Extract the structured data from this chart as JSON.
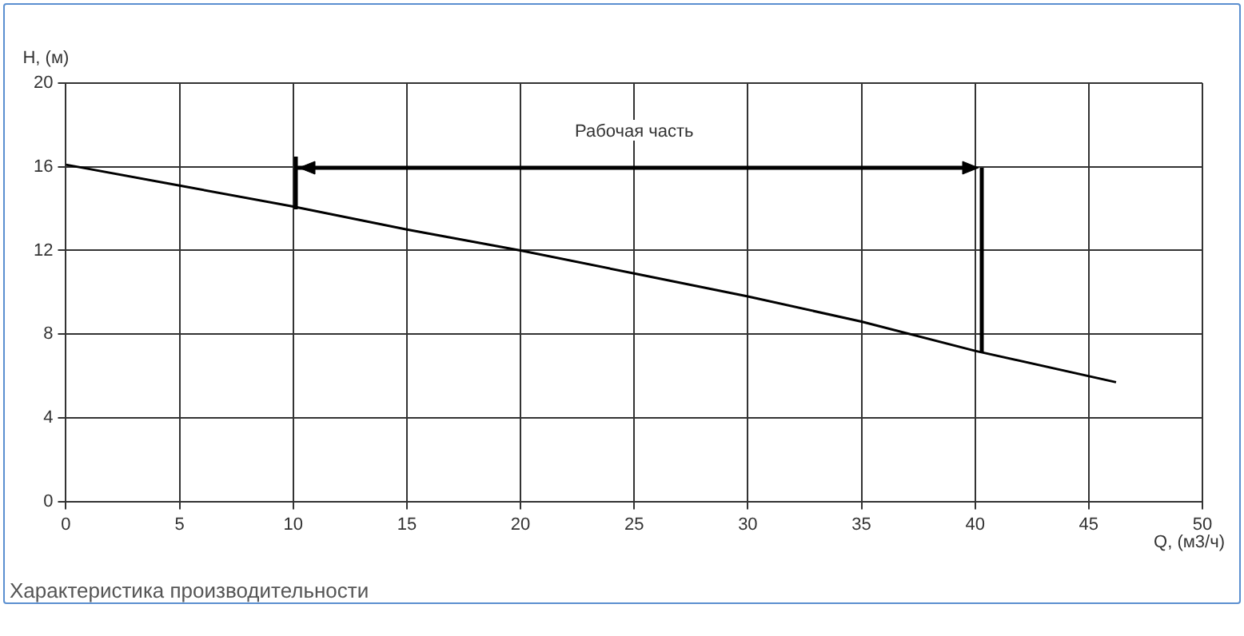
{
  "chart_data": {
    "type": "line",
    "xlabel": "Q, (м3/ч)",
    "ylabel": "H, (м)",
    "x": [
      0,
      5,
      10,
      15,
      20,
      25,
      30,
      35,
      40,
      46.2
    ],
    "series": [
      {
        "color": "#000000",
        "values": [
          16.1,
          15.1,
          14.1,
          13.0,
          12.0,
          10.9,
          9.8,
          8.6,
          7.2,
          5.7
        ]
      }
    ],
    "xlim": [
      0,
      50
    ],
    "xticks": [
      0,
      5,
      10,
      15,
      20,
      25,
      30,
      35,
      40,
      45,
      50
    ],
    "ylim": [
      0,
      20
    ],
    "yticks": [
      0,
      4,
      8,
      12,
      16,
      20
    ],
    "annotations": [
      "Рабочая часть",
      "Характеристика производительности"
    ],
    "grid": true,
    "legend": false,
    "marker": "none",
    "line_style": "solid"
  }
}
